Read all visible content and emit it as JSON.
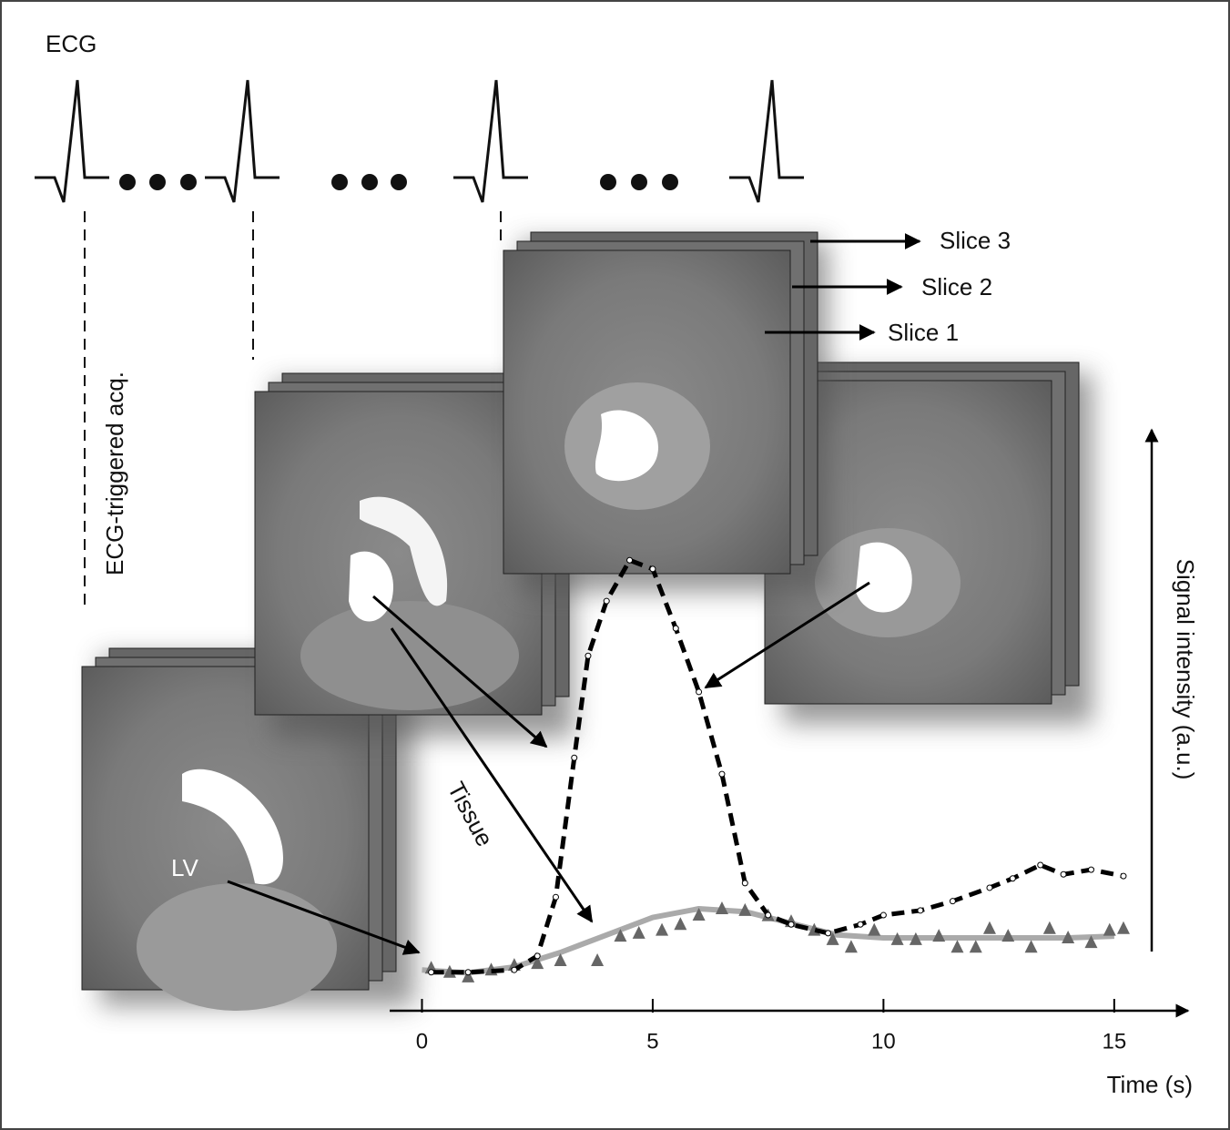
{
  "chart_data": {
    "type": "line",
    "annotations": [
      "ECG",
      "ECG-triggered acq.",
      "Slice 3",
      "Slice 2",
      "Slice 1",
      "Tissue",
      "LV"
    ],
    "xlabel": "Time (s)",
    "ylabel": "Signal intensity (a.u.)",
    "xlim": [
      -0.7,
      16.7
    ],
    "xticks": [
      0,
      5,
      10,
      15
    ],
    "ylim": [
      0,
      100
    ],
    "series": [
      {
        "color": "#000000",
        "dash": true,
        "marker": "circle",
        "x": [
          0.2,
          1,
          2,
          2.5,
          2.9,
          3.3,
          3.6,
          4,
          4.5,
          5,
          5.5,
          6,
          6.5,
          7,
          7.5,
          8,
          8.8,
          9.5,
          10,
          10.8,
          11.5,
          12.3,
          12.8,
          13.4,
          13.9,
          14.5,
          15.2
        ],
        "values": [
          6.6,
          6.6,
          7.0,
          9.4,
          19.5,
          43.4,
          60.9,
          70.3,
          77.3,
          75.8,
          65.6,
          54.7,
          40.6,
          21.9,
          16.4,
          14.8,
          13.3,
          14.8,
          16.4,
          17.2,
          18.8,
          21.1,
          22.7,
          25,
          23.4,
          24.2,
          23.1
        ]
      },
      {
        "color": "#aaaaaa",
        "dash": false,
        "marker": "none",
        "x": [
          0,
          1,
          2,
          3,
          4,
          5,
          6,
          7,
          8,
          9,
          10,
          11,
          12,
          13,
          14,
          15
        ],
        "values": [
          7,
          6.5,
          7.5,
          10,
          13,
          16,
          17.5,
          17,
          15,
          13,
          12.5,
          12.5,
          12.5,
          12.5,
          12.5,
          12.8
        ]
      },
      {
        "color": "#666666",
        "dash": false,
        "marker": "triangle",
        "x": [
          0.2,
          0.6,
          1,
          1.5,
          2,
          2.5,
          3,
          3.8,
          4.3,
          4.7,
          5.2,
          5.6,
          6,
          6.5,
          7,
          7.5,
          8,
          8.5,
          8.9,
          9.3,
          9.8,
          10.3,
          10.7,
          11.2,
          11.6,
          12,
          12.3,
          12.7,
          13.2,
          13.6,
          14,
          14.5,
          14.9,
          15.2
        ],
        "values": [
          7.3,
          6.6,
          5.8,
          7.0,
          7.8,
          8.1,
          8.6,
          8.6,
          12.8,
          13.3,
          13.8,
          14.8,
          16.4,
          17.5,
          17.2,
          16.3,
          15.3,
          13.8,
          12.2,
          10.9,
          13.8,
          12.2,
          12.2,
          12.8,
          10.9,
          10.9,
          14.1,
          12.8,
          10.9,
          14.1,
          12.5,
          11.7,
          13.8,
          14.1
        ]
      }
    ]
  }
}
